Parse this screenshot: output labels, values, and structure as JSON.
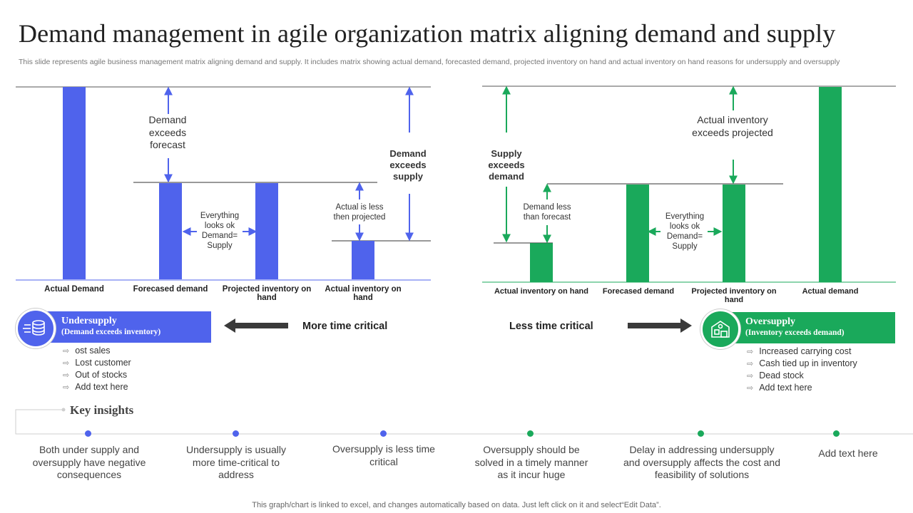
{
  "title": "Demand management in agile organization matrix aligning demand and supply",
  "subtitle": "This slide represents agile business management matrix aligning demand and supply. It includes matrix showing  actual demand, forecasted demand, projected inventory on hand and actual inventory on hand  reasons for undersupply and oversupply",
  "colors": {
    "blue": "#4F63EC",
    "green": "#1AA95B",
    "arrow_dark": "#3a3a3a"
  },
  "left_chart": {
    "categories": [
      "Actual Demand",
      "Forecased demand",
      "Projected inventory on hand",
      "Actual inventory on hand"
    ],
    "values": [
      100,
      50,
      50,
      20
    ],
    "annotations": {
      "demand_exceeds_forecast": "Demand exceeds forecast",
      "everything_ok": "Everything looks ok Demand= Supply",
      "actual_less_projected": "Actual is less then projected",
      "demand_exceeds_supply": "Demand exceeds supply"
    }
  },
  "right_chart": {
    "categories": [
      "Actual inventory on hand",
      "Forecased demand",
      "Projected inventory on hand",
      "Actual demand"
    ],
    "values": [
      20,
      50,
      50,
      100
    ],
    "annotations": {
      "supply_exceeds_demand": "Supply exceeds demand",
      "demand_less_forecast": "Demand less than forecast",
      "everything_ok": "Everything looks ok Demand= Supply",
      "actual_exceeds_projected": "Actual inventory exceeds projected"
    }
  },
  "undersupply": {
    "title": "Undersupply",
    "subtitle": "(Demand exceeds inventory)",
    "icon": "database-icon",
    "bullets": [
      "ost sales",
      "Lost customer",
      "Out of stocks",
      "Add text here"
    ]
  },
  "oversupply": {
    "title": "Oversupply",
    "subtitle": "(Inventory exceeds demand)",
    "icon": "warehouse-icon",
    "bullets": [
      "Increased carrying cost",
      "Cash tied up in inventory",
      "Dead stock",
      "Add text here"
    ]
  },
  "criticality": {
    "more": "More time critical",
    "less": "Less time critical"
  },
  "key_insights": {
    "heading": "Key insights",
    "items": [
      {
        "text": "Both under supply and oversupply  have negative consequences",
        "color": "#4F63EC"
      },
      {
        "text": "Undersupply is usually more time-critical to address",
        "color": "#4F63EC"
      },
      {
        "text": "Oversupply is  less time critical",
        "color": "#4F63EC"
      },
      {
        "text": "Oversupply should be solved in a timely manner as it incur huge",
        "color": "#1AA95B"
      },
      {
        "text": "Delay in addressing undersupply and oversupply affects the cost and feasibility of solutions",
        "color": "#1AA95B"
      },
      {
        "text": "Add text here",
        "color": "#1AA95B"
      }
    ]
  },
  "footer": "This graph/chart is linked to excel,  and changes automatically based on data. Just left click on it and select“Edit Data”."
}
